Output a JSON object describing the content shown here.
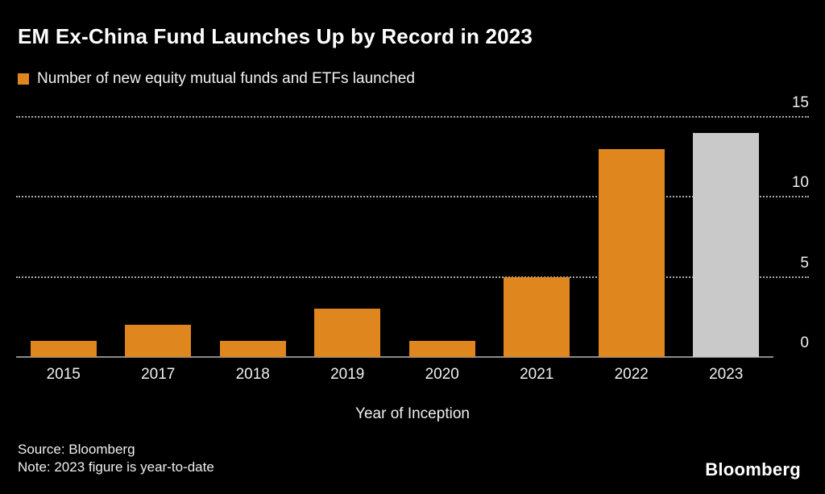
{
  "title": "EM Ex-China Fund Launches Up by Record in 2023",
  "legend": {
    "label": "Number of new equity mutual funds and ETFs launched",
    "swatch_color": "#E0861F"
  },
  "chart_data": {
    "type": "bar",
    "categories": [
      "2015",
      "2017",
      "2018",
      "2019",
      "2020",
      "2021",
      "2022",
      "2023"
    ],
    "values": [
      1,
      2,
      1,
      3,
      1,
      5,
      13,
      14
    ],
    "bar_colors": [
      "#E0861F",
      "#E0861F",
      "#E0861F",
      "#E0861F",
      "#E0861F",
      "#E0861F",
      "#E0861F",
      "#C9C9C9"
    ],
    "title": "EM Ex-China Fund Launches Up by Record in 2023",
    "xlabel": "Year of Inception",
    "ylabel": "",
    "ylim": [
      0,
      15
    ],
    "yticks": [
      0,
      5,
      10,
      15
    ],
    "grid": "horizontal dotted, solid baseline at 0",
    "legend_position": "top-left",
    "yaxis_position": "right",
    "highlight_note": "2023 bar shown in gray, all others orange"
  },
  "footer": {
    "source": "Source: Bloomberg",
    "note": "Note: 2023 figure is year-to-date",
    "brand": "Bloomberg"
  },
  "colors": {
    "background": "#000000",
    "bar_orange": "#E0861F",
    "bar_gray": "#C9C9C9",
    "text": "#FFFFFF",
    "gridline": "#A9A9A9",
    "baseline": "#8A8A8A"
  }
}
